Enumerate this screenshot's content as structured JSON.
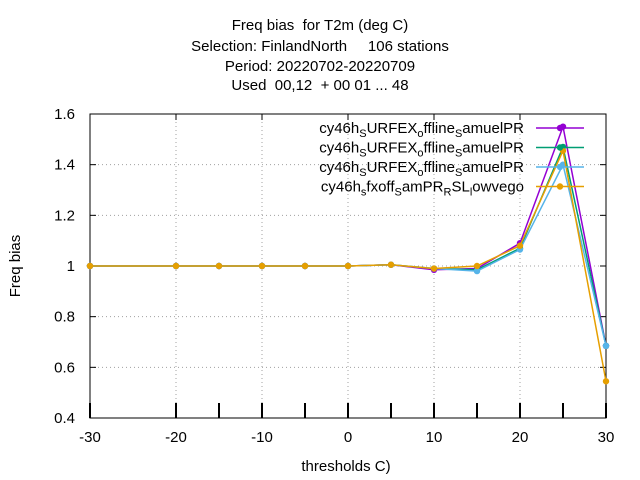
{
  "title_lines": [
    "Freq bias  for T2m (deg C)",
    "Selection: FinlandNorth     106 stations",
    "Period: 20220702-20220709",
    "Used  00,12  + 00 01 ... 48"
  ],
  "chart_data": {
    "type": "line",
    "xlabel": "thresholds C)",
    "ylabel": "Freq bias",
    "xlim": [
      -30,
      30
    ],
    "ylim": [
      0.4,
      1.6
    ],
    "xticks": [
      -30,
      -20,
      -10,
      0,
      10,
      20,
      30
    ],
    "yticks": [
      0.4,
      0.6,
      0.8,
      1,
      1.2,
      1.4,
      1.6
    ],
    "xtick_labels": [
      "-30",
      "-20",
      "-10",
      "0",
      "10",
      "20",
      "30"
    ],
    "ytick_labels": [
      "0.4",
      "0.6",
      "0.8",
      "1",
      "1.2",
      "1.4",
      "1.6"
    ],
    "threshold_marks": [
      -30,
      -20,
      -15,
      -10,
      -5,
      0,
      5,
      10,
      15,
      20,
      25,
      30
    ],
    "grid": true,
    "legend_position": "top-right",
    "x": [
      -30,
      -20,
      -15,
      -10,
      -5,
      0,
      5,
      10,
      15,
      20,
      25,
      30
    ],
    "series": [
      {
        "name": "cy46h_SURFEX_offline_SamuelPR",
        "legend_parts": [
          [
            "cy46h",
            ""
          ],
          [
            "S",
            "sub"
          ],
          [
            "URFEX",
            ""
          ],
          [
            "o",
            "sub"
          ],
          [
            "ffline",
            ""
          ],
          [
            "S",
            "sub"
          ],
          [
            "amuelPR",
            ""
          ]
        ],
        "color": "#9400d3",
        "marker": "circle",
        "values": [
          1.0,
          1.0,
          1.0,
          1.0,
          1.0,
          1.0,
          1.005,
          0.985,
          0.99,
          1.09,
          1.55,
          0.685
        ]
      },
      {
        "name": "cy46h_SURFEX_offline_SamuelPR",
        "legend_parts": [
          [
            "cy46h",
            ""
          ],
          [
            "S",
            "sub"
          ],
          [
            "URFEX",
            ""
          ],
          [
            "o",
            "sub"
          ],
          [
            "ffline",
            ""
          ],
          [
            "S",
            "sub"
          ],
          [
            "amuelPR",
            ""
          ]
        ],
        "color": "#009e73",
        "marker": "circle",
        "values": [
          1.0,
          1.0,
          1.0,
          1.0,
          1.0,
          1.0,
          1.005,
          0.99,
          0.985,
          1.07,
          1.47,
          0.685
        ]
      },
      {
        "name": "cy46h_SURFEX_offline_SamuelPR",
        "legend_parts": [
          [
            "cy46h",
            ""
          ],
          [
            "S",
            "sub"
          ],
          [
            "URFEX",
            ""
          ],
          [
            "o",
            "sub"
          ],
          [
            "ffline",
            ""
          ],
          [
            "S",
            "sub"
          ],
          [
            "amuelPR",
            ""
          ]
        ],
        "color": "#56b4e9",
        "marker": "circle",
        "values": [
          1.0,
          1.0,
          1.0,
          1.0,
          1.0,
          1.0,
          1.005,
          0.99,
          0.98,
          1.065,
          1.4,
          0.685
        ]
      },
      {
        "name": "cy46h_sfxoff_SamPR_RSL_lowvego",
        "legend_parts": [
          [
            "cy46h",
            ""
          ],
          [
            "s",
            "sub"
          ],
          [
            "fxoff",
            ""
          ],
          [
            "S",
            "sub"
          ],
          [
            "amPR",
            ""
          ],
          [
            "R",
            "sub"
          ],
          [
            "SL",
            ""
          ],
          [
            "l",
            "sub"
          ],
          [
            "owvego",
            ""
          ]
        ],
        "color": "#e69f00",
        "marker": "circle",
        "values": [
          1.0,
          1.0,
          1.0,
          1.0,
          1.0,
          1.0,
          1.005,
          0.99,
          1.0,
          1.08,
          1.455,
          0.545
        ]
      }
    ]
  }
}
